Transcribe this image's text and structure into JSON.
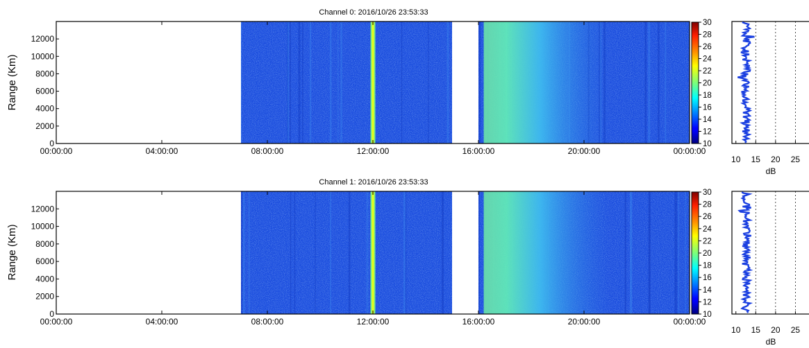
{
  "chart_data": [
    {
      "type": "heatmap",
      "title": "Channel 0: 2016/10/26 23:53:33",
      "ylabel": "Range (Km)",
      "xlabel": "",
      "x_tick_labels": [
        "00:00:00",
        "04:00:00",
        "08:00:00",
        "12:00:00",
        "16:00:00",
        "20:00:00",
        "00:00:00"
      ],
      "x_range_hours": [
        0,
        24
      ],
      "y_tick_labels": [
        "0",
        "2000",
        "4000",
        "6000",
        "8000",
        "10000",
        "12000"
      ],
      "ylim": [
        0,
        14000
      ],
      "colorbar": {
        "min": 10,
        "max": 30,
        "tick_labels": [
          "10",
          "12",
          "14",
          "16",
          "18",
          "20",
          "22",
          "24",
          "26",
          "28",
          "30"
        ],
        "colormap": "jet"
      },
      "data_segments": [
        {
          "start_hour": 7.0,
          "end_hour": 15.0
        },
        {
          "start_hour": 16.0,
          "end_hour": 24.0
        }
      ],
      "features": [
        {
          "kind": "narrow-band",
          "hour": 12.0,
          "level_db": 22
        },
        {
          "kind": "enhanced-band",
          "start_hour": 16.2,
          "end_hour": 17.0,
          "level_db": 18
        }
      ],
      "background_level_db": 12,
      "profile": {
        "xlabel": "dB",
        "x_tick_labels": [
          "10",
          "15",
          "20",
          "25"
        ],
        "xlim": [
          9,
          30
        ],
        "mean_db": 12.6,
        "spread_db": 1.0,
        "gridlines_db": [
          15,
          20,
          25
        ]
      }
    },
    {
      "type": "heatmap",
      "title": "Channel 1: 2016/10/26 23:53:33",
      "ylabel": "Range (Km)",
      "xlabel": "",
      "x_tick_labels": [
        "00:00:00",
        "04:00:00",
        "08:00:00",
        "12:00:00",
        "16:00:00",
        "20:00:00",
        "00:00:00"
      ],
      "x_range_hours": [
        0,
        24
      ],
      "y_tick_labels": [
        "0",
        "2000",
        "4000",
        "6000",
        "8000",
        "10000",
        "12000"
      ],
      "ylim": [
        0,
        14000
      ],
      "colorbar": {
        "min": 10,
        "max": 30,
        "tick_labels": [
          "10",
          "12",
          "14",
          "16",
          "18",
          "20",
          "22",
          "24",
          "26",
          "28",
          "30"
        ],
        "colormap": "jet"
      },
      "data_segments": [
        {
          "start_hour": 7.0,
          "end_hour": 15.0
        },
        {
          "start_hour": 16.0,
          "end_hour": 24.0
        }
      ],
      "features": [
        {
          "kind": "narrow-band",
          "hour": 12.0,
          "level_db": 22
        },
        {
          "kind": "enhanced-band",
          "start_hour": 16.2,
          "end_hour": 17.0,
          "level_db": 18
        }
      ],
      "background_level_db": 12,
      "profile": {
        "xlabel": "dB",
        "x_tick_labels": [
          "10",
          "15",
          "20",
          "25"
        ],
        "xlim": [
          9,
          30
        ],
        "mean_db": 12.6,
        "spread_db": 1.1,
        "gridlines_db": [
          15,
          20,
          25
        ]
      }
    }
  ]
}
